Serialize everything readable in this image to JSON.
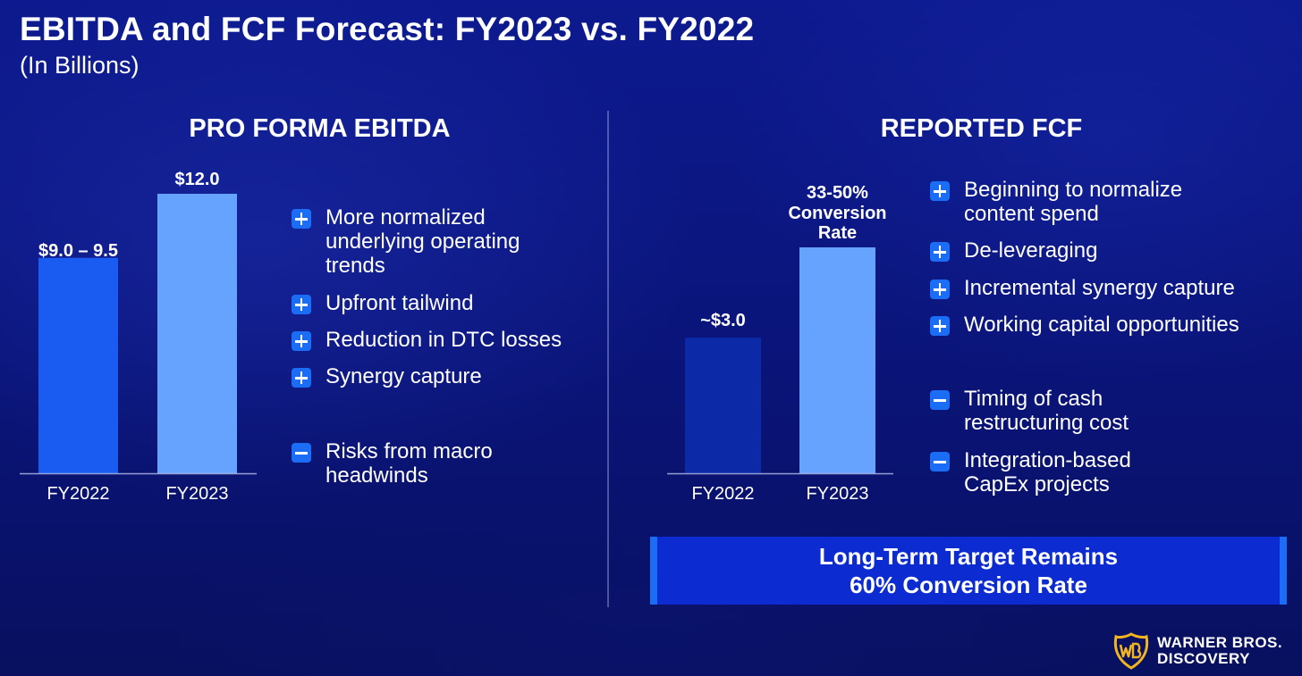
{
  "title": "EBITDA and FCF Forecast: FY2023 vs. FY2022",
  "subtitle": "(In Billions)",
  "panels": {
    "left": {
      "title": "PRO FORMA EBITDA",
      "bullets": [
        {
          "sign": "plus",
          "lines": [
            "More normalized",
            "underlying operating",
            "trends"
          ]
        },
        {
          "sign": "plus",
          "lines": [
            "Upfront tailwind"
          ]
        },
        {
          "sign": "plus",
          "lines": [
            "Reduction in DTC losses"
          ]
        },
        {
          "sign": "plus",
          "lines": [
            "Synergy capture"
          ]
        },
        {
          "sign": "minus",
          "lines": [
            "Risks from macro",
            "headwinds"
          ]
        }
      ]
    },
    "right": {
      "title": "REPORTED FCF",
      "bullets": [
        {
          "sign": "plus",
          "lines": [
            "Beginning to normalize",
            "content spend"
          ]
        },
        {
          "sign": "plus",
          "lines": [
            "De-leveraging"
          ]
        },
        {
          "sign": "plus",
          "lines": [
            "Incremental synergy capture"
          ]
        },
        {
          "sign": "plus",
          "lines": [
            "Working capital opportunities"
          ]
        },
        {
          "sign": "minus",
          "lines": [
            "Timing of cash",
            "restructuring cost"
          ]
        },
        {
          "sign": "minus",
          "lines": [
            "Integration-based",
            "CapEx projects"
          ]
        }
      ],
      "target_line1": "Long-Term Target Remains",
      "target_line2": "60% Conversion Rate"
    }
  },
  "chart_data": [
    {
      "type": "bar",
      "title": "PRO FORMA EBITDA",
      "categories": [
        "FY2022",
        "FY2023"
      ],
      "values": [
        9.25,
        12.0
      ],
      "data_labels": [
        "$9.0 – 9.5",
        "$12.0"
      ],
      "colors": [
        "#1a5cf2",
        "#66a3ff"
      ],
      "ylim": [
        0,
        12.0
      ],
      "grid": false
    },
    {
      "type": "bar",
      "title": "REPORTED FCF",
      "categories": [
        "FY2022",
        "FY2023"
      ],
      "values": [
        3.0,
        5.0
      ],
      "data_labels": [
        "~$3.0",
        "33-50% Conversion Rate"
      ],
      "colors": [
        "#0c2aa8",
        "#66a3ff"
      ],
      "ylim": [
        0,
        5.0
      ],
      "grid": false
    }
  ],
  "logo": {
    "line1": "WARNER BROS.",
    "line2": "DISCOVERY"
  },
  "colors": {
    "accent": "#1b6df5",
    "background": "#0a1478"
  }
}
